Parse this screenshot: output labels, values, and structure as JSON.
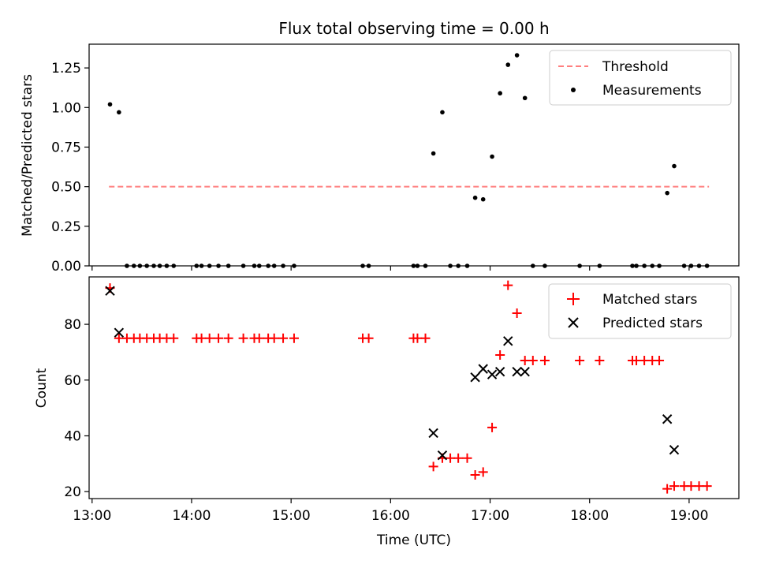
{
  "chart_data": [
    {
      "type": "scatter",
      "title": "Flux total observing time = 0.00 h",
      "xlabel": "",
      "ylabel": "Matched/Predicted stars",
      "xlim_hours": [
        12.97,
        19.5
      ],
      "ylim": [
        0,
        1.4
      ],
      "yticks": [
        0.0,
        0.25,
        0.5,
        0.75,
        1.0,
        1.25
      ],
      "ytick_labels": [
        "0.00",
        "0.25",
        "0.50",
        "0.75",
        "1.00",
        "1.25"
      ],
      "grid": false,
      "legend_position": "top-right",
      "series": [
        {
          "name": "Threshold",
          "kind": "line",
          "color": "#ff7f7f",
          "dashed": true,
          "x": [
            13.17,
            19.2
          ],
          "y": [
            0.5,
            0.5
          ]
        },
        {
          "name": "Measurements",
          "kind": "points",
          "color": "#000000",
          "x": [
            13.18,
            13.27,
            13.35,
            13.42,
            13.48,
            13.55,
            13.62,
            13.68,
            13.75,
            13.82,
            14.05,
            14.1,
            14.18,
            14.27,
            14.37,
            14.52,
            14.63,
            14.68,
            14.77,
            14.83,
            14.92,
            15.03,
            15.72,
            15.78,
            16.23,
            16.27,
            16.35,
            16.43,
            16.52,
            16.6,
            16.68,
            16.77,
            16.85,
            16.93,
            17.02,
            17.1,
            17.18,
            17.27,
            17.35,
            17.43,
            17.55,
            17.9,
            18.1,
            18.43,
            18.47,
            18.55,
            18.63,
            18.7,
            18.78,
            18.85,
            18.95,
            19.02,
            19.1,
            19.18
          ],
          "y": [
            1.02,
            0.97,
            0.0,
            0.0,
            0.0,
            0.0,
            0.0,
            0.0,
            0.0,
            0.0,
            0.0,
            0.0,
            0.0,
            0.0,
            0.0,
            0.0,
            0.0,
            0.0,
            0.0,
            0.0,
            0.0,
            0.0,
            0.0,
            0.0,
            0.0,
            0.0,
            0.0,
            0.71,
            0.97,
            0.0,
            0.0,
            0.0,
            0.43,
            0.42,
            0.69,
            1.09,
            1.27,
            1.33,
            1.06,
            0.0,
            0.0,
            0.0,
            0.0,
            0.0,
            0.0,
            0.0,
            0.0,
            0.0,
            0.46,
            0.63,
            0.0,
            0.0,
            0.0,
            0.0
          ]
        }
      ]
    },
    {
      "type": "scatter",
      "title": "",
      "xlabel": "Time (UTC)",
      "ylabel": "Count",
      "xlim_hours": [
        12.97,
        19.5
      ],
      "ylim": [
        17.5,
        97
      ],
      "yticks": [
        20,
        40,
        60,
        80
      ],
      "ytick_labels": [
        "20",
        "40",
        "60",
        "80"
      ],
      "xticks_hours": [
        13,
        14,
        15,
        16,
        17,
        18,
        19
      ],
      "xtick_labels": [
        "13:00",
        "14:00",
        "15:00",
        "16:00",
        "17:00",
        "18:00",
        "19:00"
      ],
      "grid": false,
      "legend_position": "top-right",
      "series": [
        {
          "name": "Matched stars",
          "kind": "plus",
          "color": "#ff0000",
          "x": [
            13.18,
            13.27,
            13.35,
            13.42,
            13.48,
            13.55,
            13.62,
            13.68,
            13.75,
            13.82,
            14.05,
            14.1,
            14.18,
            14.27,
            14.37,
            14.52,
            14.63,
            14.68,
            14.77,
            14.83,
            14.92,
            15.03,
            15.72,
            15.78,
            16.23,
            16.27,
            16.35,
            16.43,
            16.52,
            16.6,
            16.68,
            16.77,
            16.85,
            16.93,
            17.02,
            17.1,
            17.18,
            17.27,
            17.35,
            17.43,
            17.55,
            17.9,
            18.1,
            18.43,
            18.47,
            18.55,
            18.63,
            18.7,
            18.78,
            18.85,
            18.95,
            19.02,
            19.1,
            19.18
          ],
          "y": [
            93,
            75,
            75,
            75,
            75,
            75,
            75,
            75,
            75,
            75,
            75,
            75,
            75,
            75,
            75,
            75,
            75,
            75,
            75,
            75,
            75,
            75,
            75,
            75,
            75,
            75,
            75,
            29,
            32,
            32,
            32,
            32,
            26,
            27,
            43,
            69,
            94,
            84,
            67,
            67,
            67,
            67,
            67,
            67,
            67,
            67,
            67,
            67,
            21,
            22,
            22,
            22,
            22,
            22
          ]
        },
        {
          "name": "Predicted stars",
          "kind": "cross",
          "color": "#000000",
          "x": [
            13.18,
            13.27,
            16.43,
            16.52,
            16.85,
            16.93,
            17.02,
            17.1,
            17.18,
            17.27,
            17.35,
            18.78,
            18.85
          ],
          "y": [
            92,
            77,
            41,
            33,
            61,
            64,
            62,
            63,
            74,
            63,
            63,
            46,
            35
          ]
        }
      ]
    }
  ]
}
